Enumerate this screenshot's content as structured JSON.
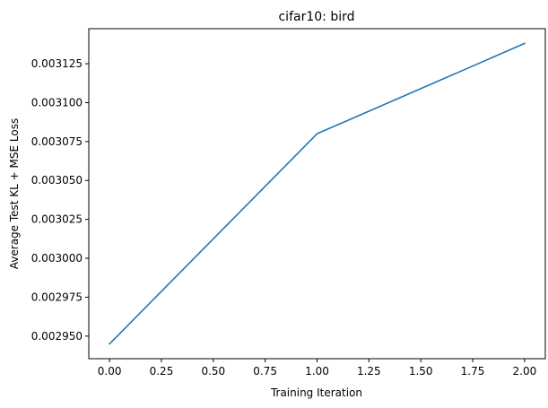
{
  "chart_data": {
    "type": "line",
    "title": "cifar10: bird",
    "xlabel": "Training Iteration",
    "ylabel": "Average Test KL + MSE Loss",
    "xlim": [
      -0.1,
      2.1
    ],
    "ylim": [
      0.0029355,
      0.0031475
    ],
    "xticks": [
      0.0,
      0.25,
      0.5,
      0.75,
      1.0,
      1.25,
      1.5,
      1.75,
      2.0
    ],
    "xtick_labels": [
      "0.00",
      "0.25",
      "0.50",
      "0.75",
      "1.00",
      "1.25",
      "1.50",
      "1.75",
      "2.00"
    ],
    "yticks": [
      0.00295,
      0.002975,
      0.003,
      0.003025,
      0.00305,
      0.003075,
      0.0031,
      0.003125
    ],
    "ytick_labels": [
      "0.002950",
      "0.002975",
      "0.003000",
      "0.003025",
      "0.003050",
      "0.003075",
      "0.003100",
      "0.003125"
    ],
    "grid": false,
    "series": [
      {
        "x": [
          0,
          1,
          2
        ],
        "values": [
          0.002945,
          0.00308,
          0.003138
        ],
        "color": "#1f77b4"
      }
    ]
  }
}
